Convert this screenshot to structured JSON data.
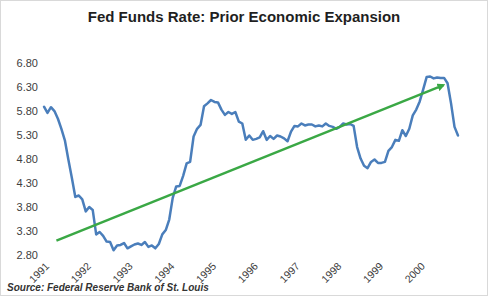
{
  "chart_data": {
    "type": "line",
    "title": "Fed Funds Rate: Prior Economic Expansion",
    "source": "Source: Federal Reserve Bank of St. Louis",
    "categories": [
      "1991",
      null,
      null,
      null,
      null,
      null,
      null,
      null,
      null,
      null,
      null,
      null,
      "1992",
      null,
      null,
      null,
      null,
      null,
      null,
      null,
      null,
      null,
      null,
      null,
      "1993",
      null,
      null,
      null,
      null,
      null,
      null,
      null,
      null,
      null,
      null,
      null,
      "1994",
      null,
      null,
      null,
      null,
      null,
      null,
      null,
      null,
      null,
      null,
      null,
      "1995",
      null,
      null,
      null,
      null,
      null,
      null,
      null,
      null,
      null,
      null,
      null,
      "1996",
      null,
      null,
      null,
      null,
      null,
      null,
      null,
      null,
      null,
      null,
      null,
      "1997",
      null,
      null,
      null,
      null,
      null,
      null,
      null,
      null,
      null,
      null,
      null,
      "1998",
      null,
      null,
      null,
      null,
      null,
      null,
      null,
      null,
      null,
      null,
      null,
      "1999",
      null,
      null,
      null,
      null,
      null,
      null,
      null,
      null,
      null,
      null,
      null,
      "2000",
      null,
      null,
      null,
      null,
      null,
      null,
      null,
      null,
      null,
      null,
      null
    ],
    "values": [
      5.91,
      5.78,
      5.9,
      5.82,
      5.66,
      5.45,
      5.21,
      4.81,
      4.43,
      4.03,
      4.06,
      3.98,
      3.73,
      3.82,
      3.76,
      3.25,
      3.3,
      3.22,
      3.1,
      3.09,
      2.92,
      3.02,
      3.03,
      3.07,
      2.96,
      3.0,
      3.04,
      3.06,
      3.03,
      3.09,
      2.99,
      3.02,
      2.96,
      3.05,
      3.25,
      3.34,
      3.56,
      4.01,
      4.25,
      4.26,
      4.47,
      4.73,
      4.76,
      5.29,
      5.45,
      5.53,
      5.92,
      5.98,
      6.05,
      6.01,
      6.0,
      5.85,
      5.74,
      5.8,
      5.76,
      5.8,
      5.6,
      5.56,
      5.22,
      5.31,
      5.22,
      5.24,
      5.27,
      5.4,
      5.22,
      5.3,
      5.24,
      5.31,
      5.29,
      5.25,
      5.19,
      5.39,
      5.51,
      5.5,
      5.56,
      5.52,
      5.54,
      5.54,
      5.5,
      5.52,
      5.5,
      5.56,
      5.51,
      5.49,
      5.45,
      5.49,
      5.56,
      5.54,
      5.55,
      5.51,
      5.07,
      4.83,
      4.68,
      4.63,
      4.76,
      4.81,
      4.74,
      4.74,
      4.76,
      4.99,
      5.07,
      5.22,
      5.2,
      5.42,
      5.3,
      5.45,
      5.73,
      5.85,
      6.02,
      6.27,
      6.53,
      6.54,
      6.5,
      6.52,
      6.51,
      6.51,
      6.4,
      5.98,
      5.49,
      5.31
    ],
    "color": "#4a7ebb",
    "ylim": [
      2.8,
      6.8
    ],
    "yticks": [
      {
        "value": 2.8,
        "label": "2.80"
      },
      {
        "value": 3.3,
        "label": "3.30"
      },
      {
        "value": 3.8,
        "label": "3.80"
      },
      {
        "value": 4.3,
        "label": "4.30"
      },
      {
        "value": 4.8,
        "label": "4.80"
      },
      {
        "value": 5.3,
        "label": "5.30"
      },
      {
        "value": 5.8,
        "label": "5.80"
      },
      {
        "value": 6.3,
        "label": "6.30"
      },
      {
        "value": 6.8,
        "label": "6.80"
      }
    ],
    "grid": false
  }
}
